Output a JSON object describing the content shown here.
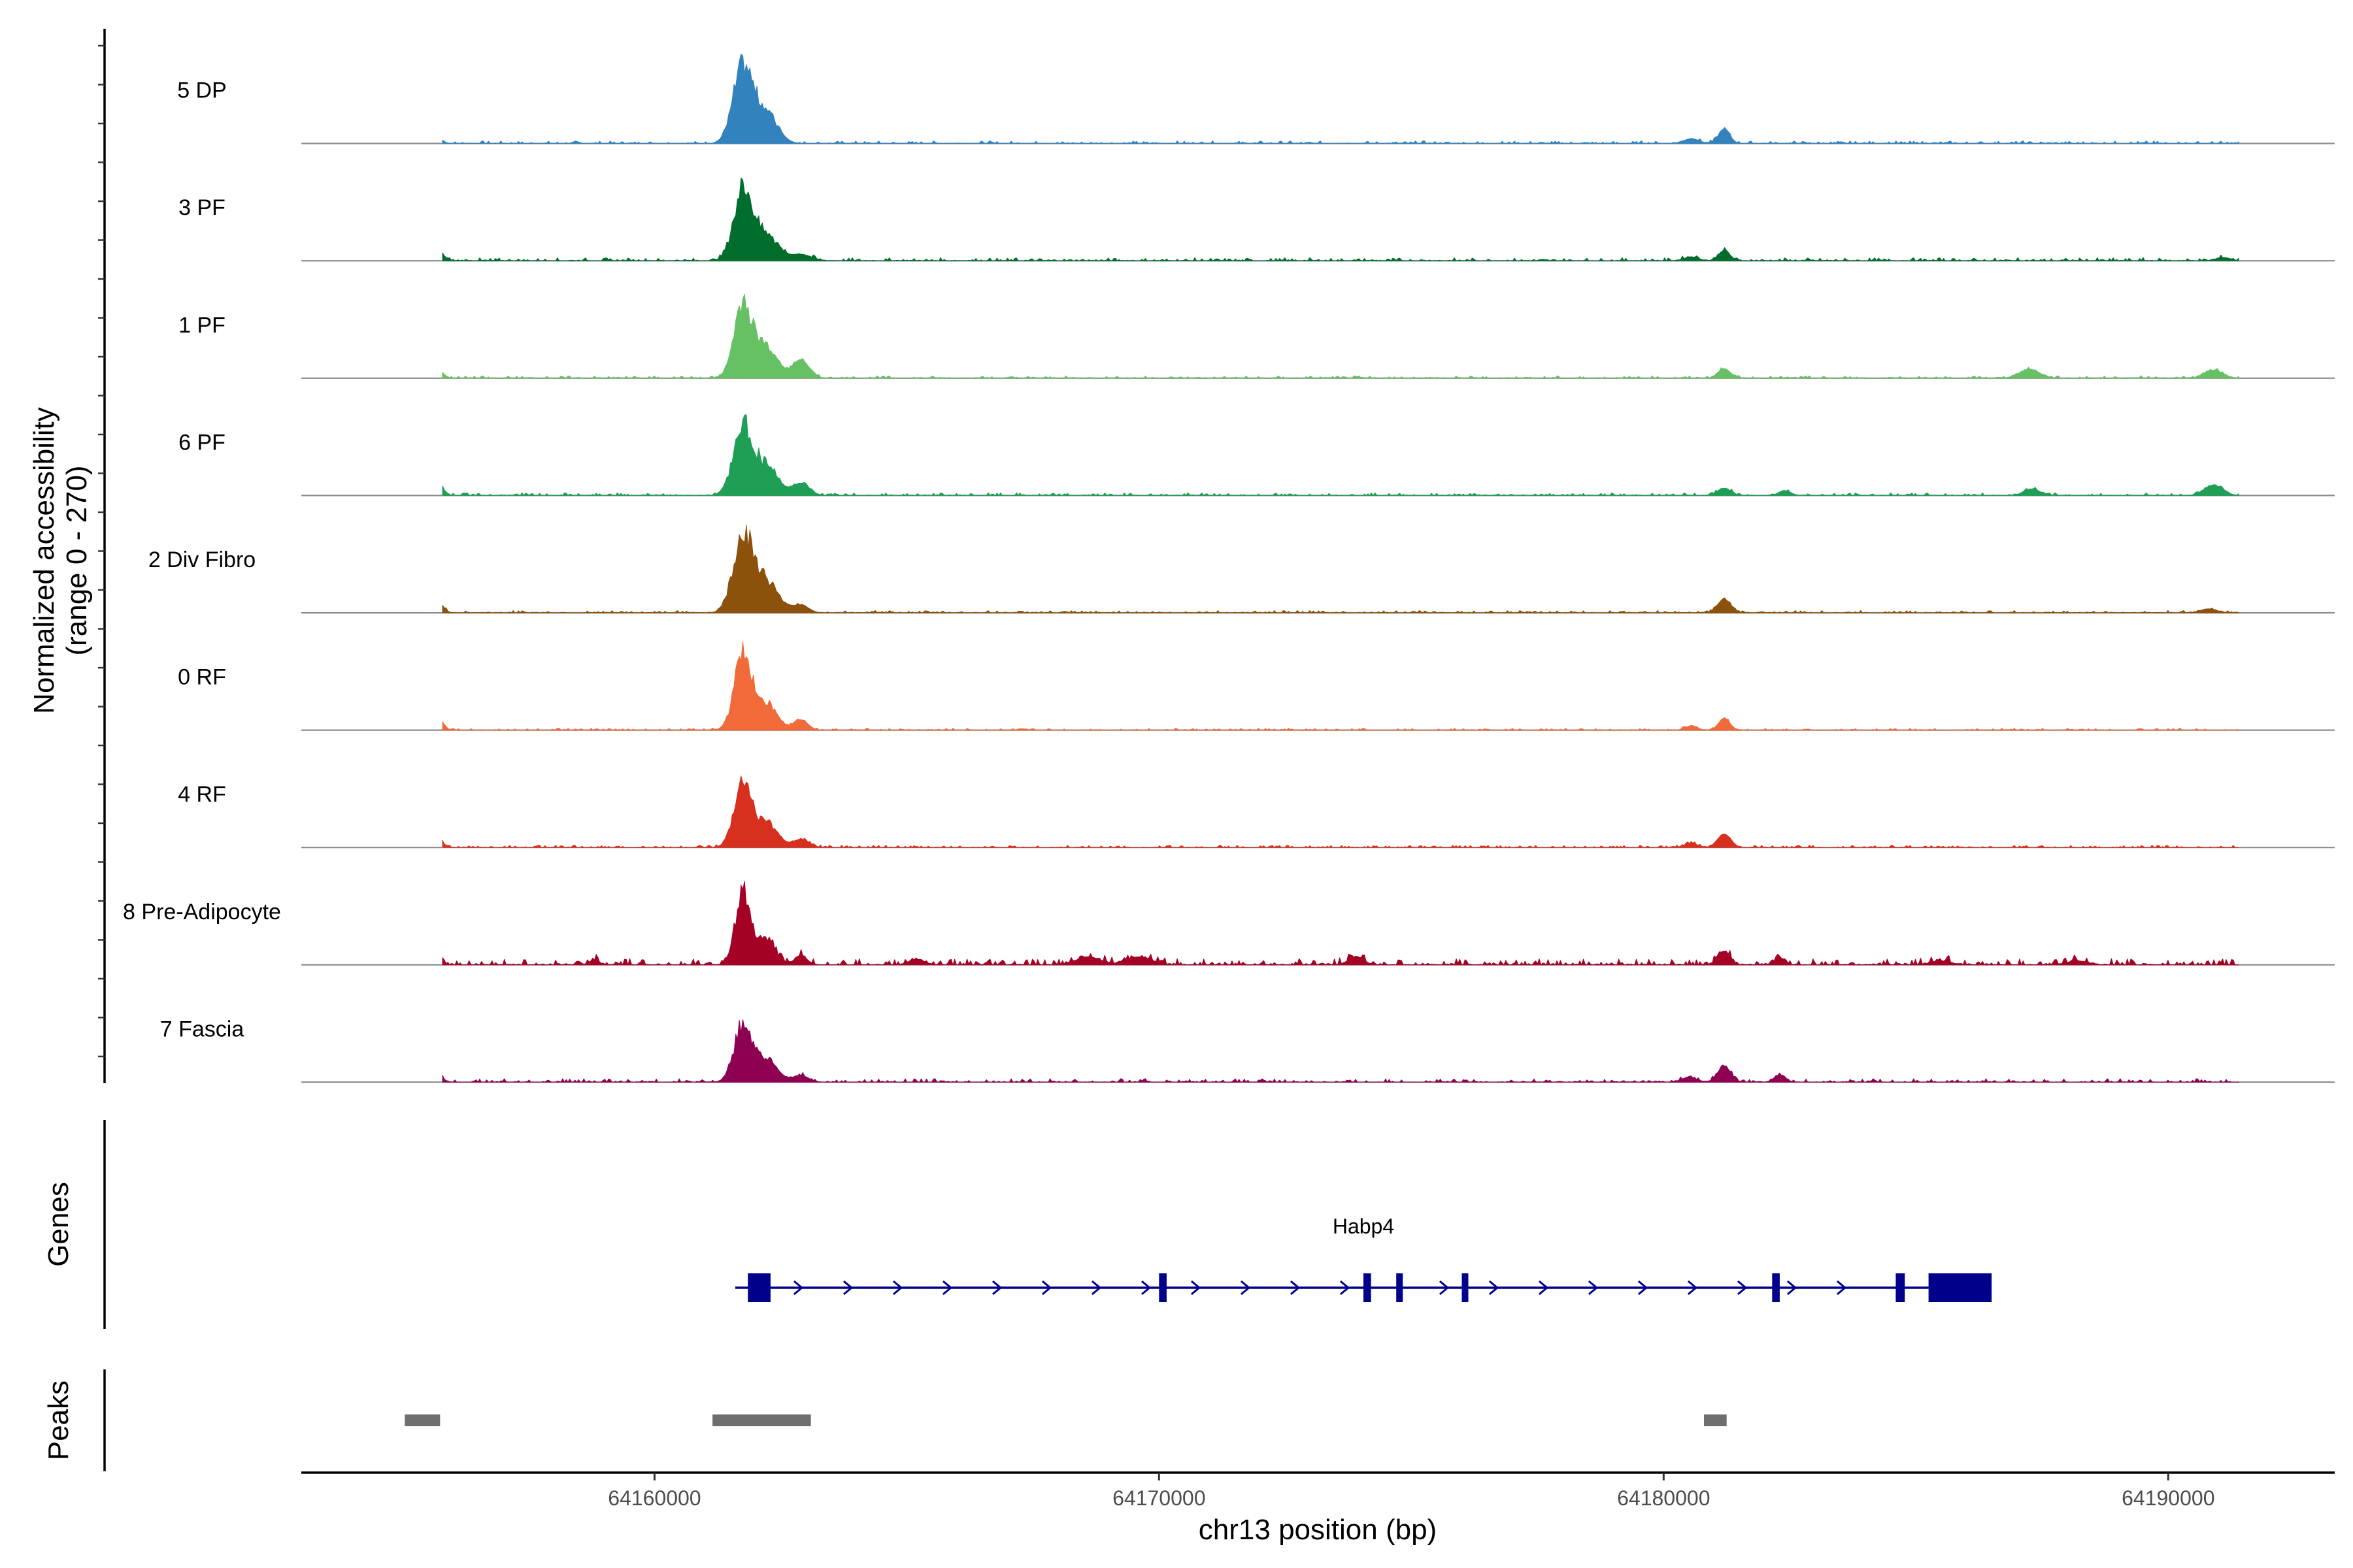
{
  "chart_data": {
    "type": "area",
    "title": "",
    "ylabel_line1": "Normalized accessibility",
    "ylabel_line2": "(range 0 - 270)",
    "yrange": [
      0,
      270
    ],
    "xlabel": "chr13 position (bp)",
    "xlim": [
      64153000,
      64193300
    ],
    "x_ticks": [
      64160000,
      64170000,
      64180000,
      64190000
    ],
    "x_tick_labels": [
      "64160000",
      "64170000",
      "64180000",
      "64190000"
    ],
    "signal_range": [
      64155800,
      64191400
    ],
    "tracks": [
      {
        "name": "5 DP",
        "color": "#3182bd",
        "noise": 0.035,
        "peaks": [
          [
            64155550,
            0.26,
            130
          ],
          [
            64161750,
            1.0,
            190
          ],
          [
            64162200,
            0.42,
            220
          ],
          [
            64181200,
            0.18,
            110
          ],
          [
            64180550,
            0.06,
            150
          ]
        ]
      },
      {
        "name": "3 PF",
        "color": "#006d2c",
        "noise": 0.04,
        "peaks": [
          [
            64155550,
            0.49,
            140
          ],
          [
            64161750,
            0.95,
            180
          ],
          [
            64162200,
            0.35,
            230
          ],
          [
            64162900,
            0.08,
            200
          ],
          [
            64181200,
            0.13,
            110
          ],
          [
            64180550,
            0.05,
            140
          ],
          [
            64191100,
            0.04,
            140
          ]
        ]
      },
      {
        "name": "1 PF",
        "color": "#66c164",
        "noise": 0.03,
        "peaks": [
          [
            64155550,
            0.37,
            140
          ],
          [
            64161750,
            1.0,
            170
          ],
          [
            64162200,
            0.43,
            220
          ],
          [
            64162900,
            0.23,
            160
          ],
          [
            64181200,
            0.12,
            120
          ],
          [
            64187250,
            0.11,
            200
          ],
          [
            64190900,
            0.1,
            180
          ]
        ]
      },
      {
        "name": "6 PF",
        "color": "#1f9e55",
        "noise": 0.035,
        "peaks": [
          [
            64155550,
            0.58,
            140
          ],
          [
            64161750,
            0.88,
            190
          ],
          [
            64162200,
            0.38,
            230
          ],
          [
            64162900,
            0.15,
            170
          ],
          [
            64181200,
            0.09,
            130
          ],
          [
            64182400,
            0.06,
            120
          ],
          [
            64187300,
            0.08,
            160
          ],
          [
            64190900,
            0.13,
            180
          ]
        ]
      },
      {
        "name": "2 Div Fibro",
        "color": "#8c510a",
        "noise": 0.03,
        "peaks": [
          [
            64155550,
            0.47,
            140
          ],
          [
            64161750,
            1.0,
            190
          ],
          [
            64162200,
            0.43,
            230
          ],
          [
            64162900,
            0.1,
            150
          ],
          [
            64181200,
            0.17,
            130
          ],
          [
            64190800,
            0.05,
            160
          ]
        ]
      },
      {
        "name": "0 RF",
        "color": "#f16b3a",
        "noise": 0.025,
        "peaks": [
          [
            64155550,
            0.52,
            140
          ],
          [
            64161750,
            0.98,
            170
          ],
          [
            64162200,
            0.37,
            210
          ],
          [
            64162900,
            0.13,
            140
          ],
          [
            64181200,
            0.15,
            110
          ],
          [
            64180550,
            0.05,
            120
          ]
        ]
      },
      {
        "name": "4 RF",
        "color": "#d7301f",
        "noise": 0.03,
        "peaks": [
          [
            64155550,
            0.34,
            140
          ],
          [
            64161750,
            0.82,
            170
          ],
          [
            64162200,
            0.33,
            220
          ],
          [
            64162900,
            0.1,
            160
          ],
          [
            64181200,
            0.17,
            130
          ],
          [
            64180550,
            0.05,
            130
          ]
        ]
      },
      {
        "name": "8 Pre-Adipocyte",
        "color": "#a50026",
        "noise": 0.08,
        "peaks": [
          [
            64155550,
            0.55,
            120
          ],
          [
            64161750,
            1.04,
            140
          ],
          [
            64162200,
            0.35,
            170
          ],
          [
            64162900,
            0.12,
            120
          ],
          [
            64158800,
            0.06,
            100
          ],
          [
            64165200,
            0.07,
            150
          ],
          [
            64168600,
            0.1,
            240
          ],
          [
            64169600,
            0.1,
            240
          ],
          [
            64173900,
            0.1,
            150
          ],
          [
            64181200,
            0.17,
            120
          ],
          [
            64182300,
            0.09,
            100
          ],
          [
            64185500,
            0.05,
            200
          ],
          [
            64188200,
            0.05,
            200
          ]
        ]
      },
      {
        "name": "7 Fascia",
        "color": "#8e0152",
        "noise": 0.045,
        "peaks": [
          [
            64155550,
            0.3,
            140
          ],
          [
            64161750,
            0.73,
            170
          ],
          [
            64162200,
            0.3,
            220
          ],
          [
            64162900,
            0.08,
            160
          ],
          [
            64181200,
            0.2,
            130
          ],
          [
            64182300,
            0.09,
            110
          ],
          [
            64180500,
            0.06,
            150
          ]
        ]
      }
    ],
    "genes_label": "Genes",
    "gene": {
      "name": "Habp4",
      "strand": "+",
      "start": 64161600,
      "end": 64186500,
      "exons": [
        [
          64161850,
          64162300
        ],
        [
          64170000,
          64170150
        ],
        [
          64174050,
          64174200
        ],
        [
          64174700,
          64174760
        ],
        [
          64176000,
          64176070
        ],
        [
          64182150,
          64182300
        ],
        [
          64184600,
          64184780
        ],
        [
          64185250,
          64186500
        ]
      ],
      "color": "#00008b"
    },
    "peaks_label": "Peaks",
    "peaks": [
      [
        64155050,
        64155750
      ],
      [
        64161150,
        64163100
      ],
      [
        64180800,
        64181250
      ]
    ],
    "peak_color": "#6e6e6e"
  }
}
